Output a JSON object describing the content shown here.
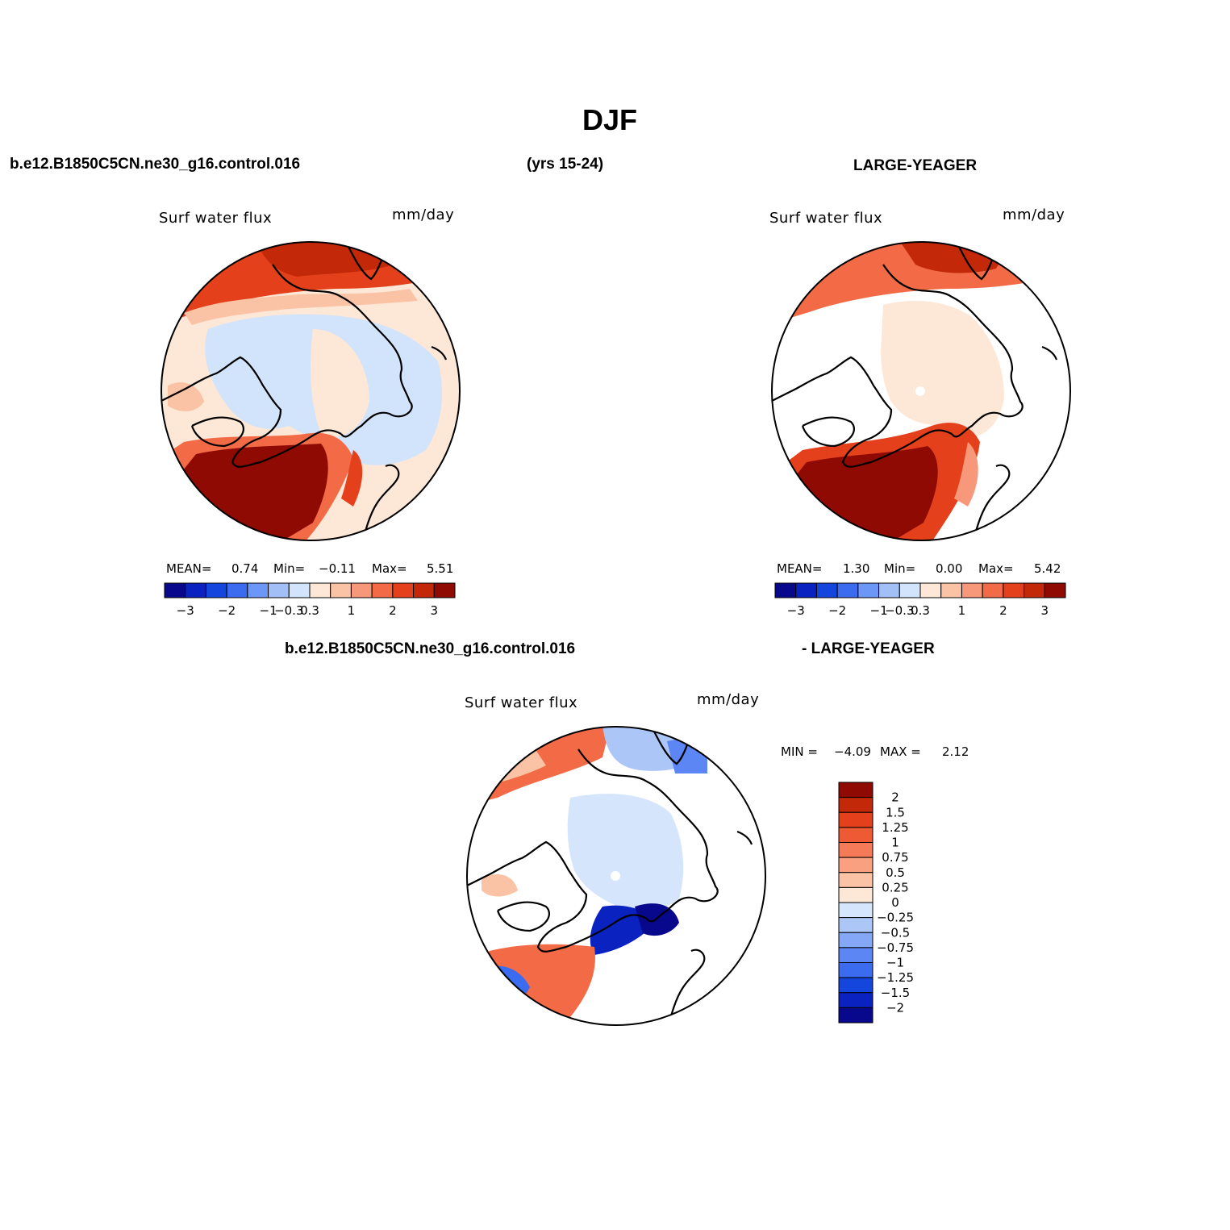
{
  "title": "DJF",
  "header": {
    "case": "b.e12.B1850C5CN.ne30_g16.control.016",
    "years": "(yrs 15-24)",
    "obs": "LARGE-YEAGER"
  },
  "diff_header": {
    "left": "b.e12.B1850C5CN.ne30_g16.control.016",
    "right": "- LARGE-YEAGER"
  },
  "colors": {
    "scale": [
      "#08088c",
      "#0a22bf",
      "#1446de",
      "#3b6cf0",
      "#6d97f7",
      "#a3bff8",
      "#d2e4fb",
      "#fde7d6",
      "#fbc3a6",
      "#f7987a",
      "#f26b46",
      "#e4401c",
      "#c32808",
      "#8e0a03"
    ],
    "diff_scale": [
      "#08088c",
      "#0a22bf",
      "#1446de",
      "#3b6cf0",
      "#5b86f3",
      "#85a8f6",
      "#acc6f8",
      "#d5e6fc",
      "#fde7d6",
      "#fbc3a6",
      "#f8a07f",
      "#f47a58",
      "#ee5a34",
      "#e4401c",
      "#c32808",
      "#8e0a03"
    ]
  },
  "panels": [
    {
      "id": "model",
      "label": "Surf water flux",
      "units": "mm/day",
      "mean_label": "MEAN=",
      "mean": "0.74",
      "min_label": "Min=",
      "min": "−0.11",
      "max_label": "Max=",
      "max": "5.51",
      "ticks": [
        "−3",
        "−2",
        "−1",
        "−0.3",
        "0.3",
        "1",
        "2",
        "3"
      ]
    },
    {
      "id": "obs",
      "label": "Surf water flux",
      "units": "mm/day",
      "mean_label": "MEAN=",
      "mean": "1.30",
      "min_label": "Min=",
      "min": "0.00",
      "max_label": "Max=",
      "max": "5.42",
      "ticks": [
        "−3",
        "−2",
        "−1",
        "−0.3",
        "0.3",
        "1",
        "2",
        "3"
      ]
    },
    {
      "id": "diff",
      "label": "Surf water flux",
      "units": "mm/day",
      "minmax": {
        "min_label": "MIN =",
        "min": "−4.09",
        "max_label": "MAX =",
        "max": "2.12"
      },
      "ticks": [
        "2",
        "1.5",
        "1.25",
        "1",
        "0.75",
        "0.5",
        "0.25",
        "0",
        "−0.25",
        "−0.5",
        "−0.75",
        "−1",
        "−1.25",
        "−1.5",
        "−2"
      ]
    }
  ]
}
